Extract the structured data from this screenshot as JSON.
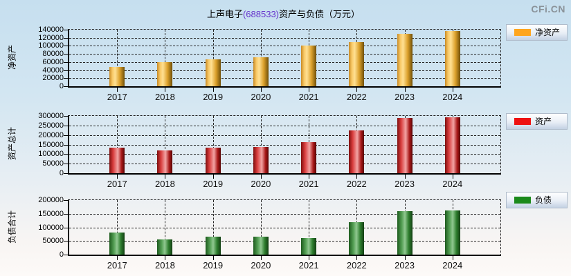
{
  "page": {
    "title_prefix": "上声电子",
    "title_code": "(688533)",
    "title_suffix": "资产与负债（万元）",
    "logo": "CFi.CN"
  },
  "colors": {
    "grid": "#222222",
    "axis": "#000000",
    "title_code": "#6633cc",
    "logo_gray": "#8a9299",
    "background_top": "#c6dfef",
    "background_bottom": "#fdfaf8"
  },
  "chart_data": [
    {
      "type": "bar",
      "title": "净资产",
      "axis_label": "净资产",
      "legend": "净资产",
      "categories": [
        "2017",
        "2018",
        "2019",
        "2020",
        "2021",
        "2022",
        "2023",
        "2024"
      ],
      "values": [
        48000,
        59000,
        67000,
        71000,
        100000,
        110000,
        129000,
        136000
      ],
      "ylim": [
        0,
        140000
      ],
      "ytick_interval": 20000,
      "grid": "dashed",
      "legend_position": "right",
      "color_hex": "#ffa51e",
      "bar_gradient": [
        "#c98a24",
        "#f8c967",
        "#ffe093",
        "#dca12c",
        "#6f4f08"
      ],
      "gradient_stops": [
        0,
        20,
        38,
        68,
        100
      ]
    },
    {
      "type": "bar",
      "title": "资产",
      "axis_label": "资产总计",
      "legend": "资产",
      "categories": [
        "2017",
        "2018",
        "2019",
        "2020",
        "2021",
        "2022",
        "2023",
        "2024"
      ],
      "values": [
        132000,
        118000,
        133000,
        136000,
        161000,
        225000,
        289000,
        292000
      ],
      "ylim": [
        0,
        300000
      ],
      "ytick_interval": 50000,
      "grid": "dashed",
      "legend_position": "right",
      "color_hex": "#ee1111",
      "bar_gradient": [
        "#7e0e0e",
        "#d83c3c",
        "#f2a4a4",
        "#a81818",
        "#570404"
      ],
      "gradient_stops": [
        0,
        25,
        55,
        80,
        100
      ]
    },
    {
      "type": "bar",
      "title": "负债",
      "axis_label": "负债合计",
      "legend": "负债",
      "categories": [
        "2017",
        "2018",
        "2019",
        "2020",
        "2021",
        "2022",
        "2023",
        "2024"
      ],
      "values": [
        81000,
        56000,
        66000,
        67000,
        61000,
        118000,
        160000,
        161000
      ],
      "ylim": [
        0,
        200000
      ],
      "ytick_interval": 50000,
      "grid": "dashed",
      "legend_position": "right",
      "color_hex": "#1b8a1b",
      "bar_gradient": [
        "#1c5a1c",
        "#55a055",
        "#90c890",
        "#2e7e2e",
        "#123e12"
      ],
      "gradient_stops": [
        0,
        30,
        50,
        75,
        100
      ]
    }
  ]
}
